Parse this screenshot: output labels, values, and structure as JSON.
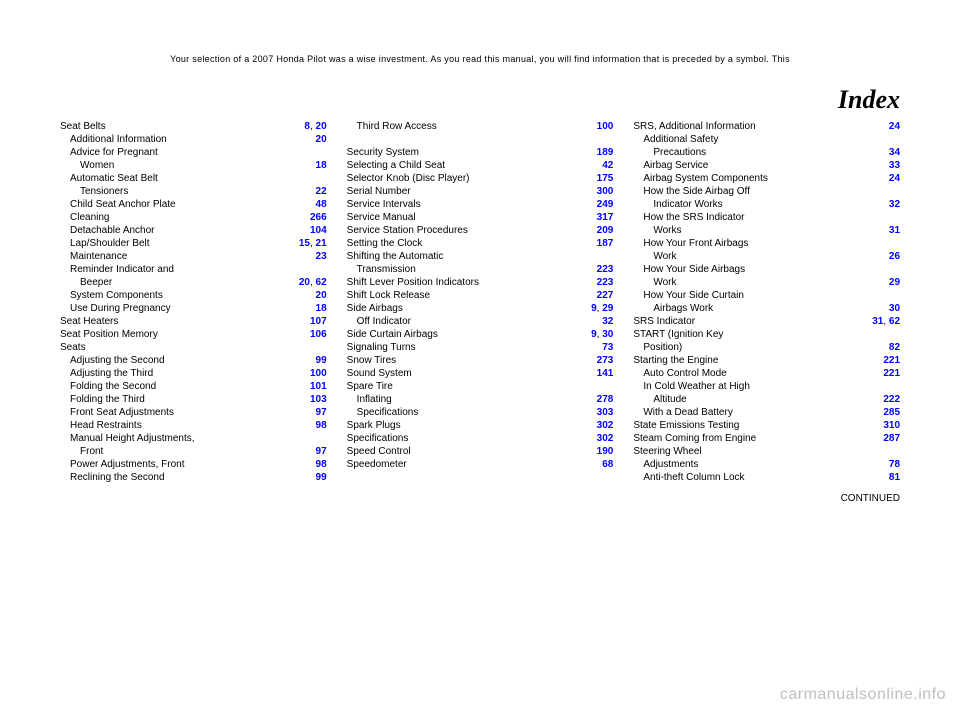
{
  "dealer_text": "Your selection of a 2007 Honda Pilot was a wise investment. As you read this manual, you will find information that is preceded by a symbol. This",
  "index_title": "Index",
  "watermark": "carmanualsonline.info",
  "continued": "CONTINUED",
  "columns": [
    {
      "entries": [
        {
          "label": "Seat Belts",
          "pages": [
            "8",
            "20"
          ],
          "sub": 0
        },
        {
          "label": "Additional Information",
          "pages": [
            "20"
          ],
          "sub": 1
        },
        {
          "label": "Advice for Pregnant",
          "pages": [],
          "sub": 1
        },
        {
          "label": "Women",
          "pages": [
            "18"
          ],
          "sub": 2
        },
        {
          "label": "Automatic Seat Belt",
          "pages": [],
          "sub": 1
        },
        {
          "label": "Tensioners",
          "pages": [
            "22"
          ],
          "sub": 2
        },
        {
          "label": "Child Seat Anchor Plate",
          "pages": [
            "48"
          ],
          "sub": 1
        },
        {
          "label": "Cleaning",
          "pages": [
            "266"
          ],
          "sub": 1
        },
        {
          "label": "Detachable Anchor",
          "pages": [
            "104"
          ],
          "sub": 1
        },
        {
          "label": "Lap/Shoulder Belt",
          "pages": [
            "15",
            "21"
          ],
          "sub": 1
        },
        {
          "label": "Maintenance",
          "pages": [
            "23"
          ],
          "sub": 1
        },
        {
          "label": "Reminder Indicator and",
          "pages": [],
          "sub": 1
        },
        {
          "label": "Beeper",
          "pages": [
            "20",
            "62"
          ],
          "sub": 2
        },
        {
          "label": "System Components",
          "pages": [
            "20"
          ],
          "sub": 1
        },
        {
          "label": "Use During Pregnancy",
          "pages": [
            "18"
          ],
          "sub": 1
        },
        {
          "label": "Seat Heaters",
          "pages": [
            "107"
          ],
          "sub": 0
        },
        {
          "label": "Seat Position Memory",
          "pages": [
            "106"
          ],
          "sub": 0
        },
        {
          "label": "Seats",
          "pages": [],
          "sub": 0
        },
        {
          "label": "Adjusting the Second",
          "pages": [
            "99"
          ],
          "sub": 1
        },
        {
          "label": "Adjusting the Third",
          "pages": [
            "100"
          ],
          "sub": 1
        },
        {
          "label": "Folding the Second",
          "pages": [
            "101"
          ],
          "sub": 1
        },
        {
          "label": "Folding the Third",
          "pages": [
            "103"
          ],
          "sub": 1
        },
        {
          "label": "Front Seat Adjustments",
          "pages": [
            "97"
          ],
          "sub": 1
        },
        {
          "label": "Head Restraints",
          "pages": [
            "98"
          ],
          "sub": 1
        },
        {
          "label": "Manual Height Adjustments,",
          "pages": [],
          "sub": 1
        },
        {
          "label": "Front",
          "pages": [
            "97"
          ],
          "sub": 2
        },
        {
          "label": "Power Adjustments, Front",
          "pages": [
            "98"
          ],
          "sub": 1
        },
        {
          "label": "Reclining the Second",
          "pages": [
            "99"
          ],
          "sub": 1
        }
      ]
    },
    {
      "entries": [
        {
          "label": "Third Row Access",
          "pages": [
            "100"
          ],
          "sub": 1
        },
        {
          "gap": true
        },
        {
          "label": "Security System",
          "pages": [
            "189"
          ],
          "sub": 0
        },
        {
          "label": "Selecting a Child Seat",
          "pages": [
            "42"
          ],
          "sub": 0
        },
        {
          "label": "Selector Knob (Disc Player)",
          "pages": [
            "175"
          ],
          "sub": 0
        },
        {
          "label": "Serial Number",
          "pages": [
            "300"
          ],
          "sub": 0
        },
        {
          "label": "Service Intervals",
          "pages": [
            "249"
          ],
          "sub": 0
        },
        {
          "label": "Service Manual",
          "pages": [
            "317"
          ],
          "sub": 0
        },
        {
          "label": "Service Station Procedures",
          "pages": [
            "209"
          ],
          "sub": 0
        },
        {
          "label": "Setting the Clock",
          "pages": [
            "187"
          ],
          "sub": 0
        },
        {
          "label": "Shifting the Automatic",
          "pages": [],
          "sub": 0
        },
        {
          "label": "Transmission",
          "pages": [
            "223"
          ],
          "sub": 1
        },
        {
          "label": "Shift Lever Position Indicators",
          "pages": [
            "223"
          ],
          "sub": 0
        },
        {
          "label": "Shift Lock Release",
          "pages": [
            "227"
          ],
          "sub": 0
        },
        {
          "label": "Side Airbags",
          "pages": [
            "9",
            "29"
          ],
          "sub": 0
        },
        {
          "label": "Off Indicator",
          "pages": [
            "32"
          ],
          "sub": 1
        },
        {
          "label": "Side Curtain Airbags",
          "pages": [
            "9",
            "30"
          ],
          "sub": 0
        },
        {
          "label": "Signaling Turns",
          "pages": [
            "73"
          ],
          "sub": 0
        },
        {
          "label": "Snow Tires",
          "pages": [
            "273"
          ],
          "sub": 0
        },
        {
          "label": "Sound System",
          "pages": [
            "141"
          ],
          "sub": 0
        },
        {
          "label": "Spare Tire",
          "pages": [],
          "sub": 0
        },
        {
          "label": "Inflating",
          "pages": [
            "278"
          ],
          "sub": 1
        },
        {
          "label": "Specifications",
          "pages": [
            "303"
          ],
          "sub": 1
        },
        {
          "label": "Spark Plugs",
          "pages": [
            "302"
          ],
          "sub": 0
        },
        {
          "label": "Specifications",
          "pages": [
            "302"
          ],
          "sub": 0
        },
        {
          "label": "Speed Control",
          "pages": [
            "190"
          ],
          "sub": 0
        },
        {
          "label": "Speedometer",
          "pages": [
            "68"
          ],
          "sub": 0
        }
      ]
    },
    {
      "entries": [
        {
          "label": "SRS, Additional Information",
          "pages": [
            "24"
          ],
          "sub": 0
        },
        {
          "label": "Additional Safety",
          "pages": [],
          "sub": 1
        },
        {
          "label": "Precautions",
          "pages": [
            "34"
          ],
          "sub": 2
        },
        {
          "label": "Airbag Service",
          "pages": [
            "33"
          ],
          "sub": 1
        },
        {
          "label": "Airbag System Components",
          "pages": [
            "24"
          ],
          "sub": 1
        },
        {
          "label": "How the Side Airbag Off",
          "pages": [],
          "sub": 1
        },
        {
          "label": "Indicator Works",
          "pages": [
            "32"
          ],
          "sub": 2
        },
        {
          "label": "How the SRS Indicator",
          "pages": [],
          "sub": 1
        },
        {
          "label": "Works",
          "pages": [
            "31"
          ],
          "sub": 2
        },
        {
          "label": "How Your Front Airbags",
          "pages": [],
          "sub": 1
        },
        {
          "label": "Work",
          "pages": [
            "26"
          ],
          "sub": 2
        },
        {
          "label": "How Your Side Airbags",
          "pages": [],
          "sub": 1
        },
        {
          "label": "Work",
          "pages": [
            "29"
          ],
          "sub": 2
        },
        {
          "label": "How Your Side Curtain",
          "pages": [],
          "sub": 1
        },
        {
          "label": "Airbags Work",
          "pages": [
            "30"
          ],
          "sub": 2
        },
        {
          "label": "SRS Indicator",
          "pages": [
            "31",
            "62"
          ],
          "sub": 0
        },
        {
          "label": "START (Ignition Key",
          "pages": [],
          "sub": 0
        },
        {
          "label": "Position)",
          "pages": [
            "82"
          ],
          "sub": 1
        },
        {
          "label": "Starting the Engine",
          "pages": [
            "221"
          ],
          "sub": 0
        },
        {
          "label": "Auto Control Mode",
          "pages": [
            "221"
          ],
          "sub": 1
        },
        {
          "label": "In Cold Weather at High",
          "pages": [],
          "sub": 1
        },
        {
          "label": "Altitude",
          "pages": [
            "222"
          ],
          "sub": 2
        },
        {
          "label": "With a Dead Battery",
          "pages": [
            "285"
          ],
          "sub": 1
        },
        {
          "label": "State Emissions Testing",
          "pages": [
            "310"
          ],
          "sub": 0
        },
        {
          "label": "Steam Coming from Engine",
          "pages": [
            "287"
          ],
          "sub": 0
        },
        {
          "label": "Steering Wheel",
          "pages": [],
          "sub": 0
        },
        {
          "label": "Adjustments",
          "pages": [
            "78"
          ],
          "sub": 1
        },
        {
          "label": "Anti-theft Column Lock",
          "pages": [
            "81"
          ],
          "sub": 1
        }
      ]
    }
  ]
}
